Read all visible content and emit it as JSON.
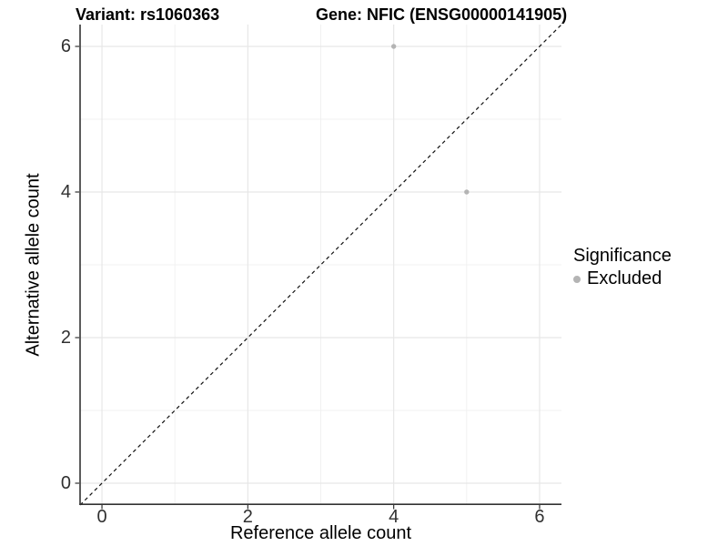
{
  "title": {
    "variant": "Variant: rs1060363",
    "gene": "Gene: NFIC (ENSG00000141905)"
  },
  "axes": {
    "x_label": "Reference allele count",
    "y_label": "Alternative allele count"
  },
  "legend": {
    "title": "Significance",
    "items": [
      {
        "label": "Excluded",
        "color": "#b4b4b4"
      }
    ]
  },
  "colors": {
    "point": "#b4b4b4",
    "grid_major": "#e7e7e7",
    "grid_minor": "#f0f0f0",
    "axis_line": "#333333",
    "tick_mark": "#333333",
    "reference_line": "#111111",
    "background": "#ffffff"
  },
  "chart_data": {
    "type": "scatter",
    "title": "Variant: rs1060363  /  Gene: NFIC (ENSG00000141905)",
    "xlabel": "Reference allele count",
    "ylabel": "Alternative allele count",
    "xlim": [
      -0.3,
      6.3
    ],
    "ylim": [
      -0.3,
      6.3
    ],
    "x_ticks": [
      0,
      2,
      4,
      6
    ],
    "y_ticks": [
      0,
      2,
      4,
      6
    ],
    "x_minor_grid": [
      1,
      3,
      5
    ],
    "y_minor_grid": [
      1,
      3,
      5
    ],
    "grid": true,
    "legend_position": "right-center",
    "series": [
      {
        "name": "Excluded",
        "color": "#b4b4b4",
        "points": [
          {
            "x": 4,
            "y": 6
          },
          {
            "x": 5,
            "y": 4
          }
        ]
      }
    ],
    "reference_line": {
      "style": "dashed",
      "color": "#111111",
      "from": [
        -0.3,
        -0.3
      ],
      "to": [
        6.3,
        6.3
      ],
      "meaning": "y = x identity line"
    }
  }
}
